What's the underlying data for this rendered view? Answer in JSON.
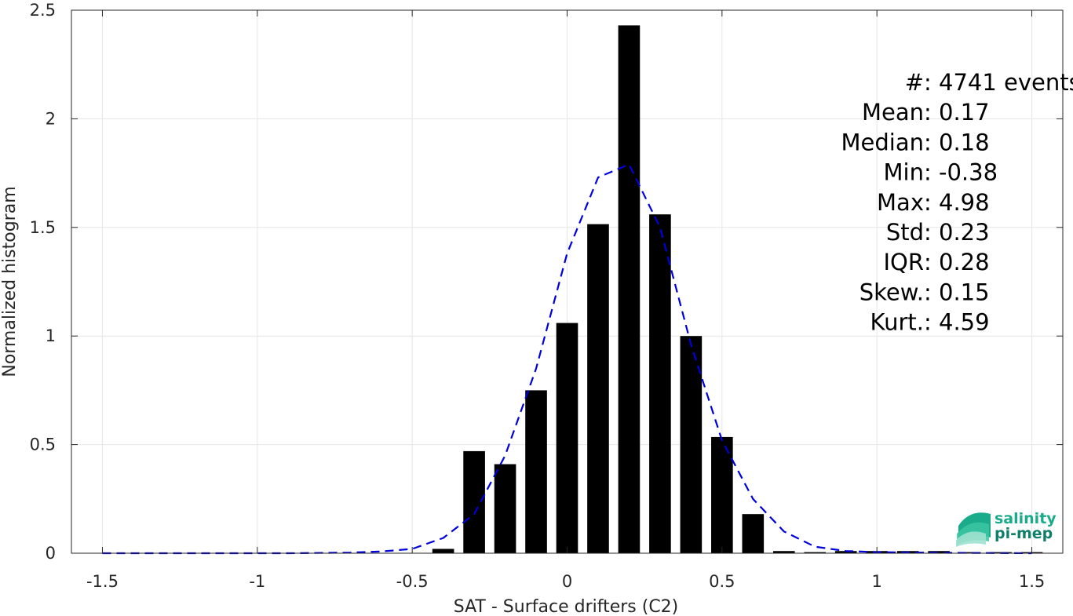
{
  "chart_data": {
    "type": "bar",
    "xlabel": "SAT - Surface drifters (C2)",
    "ylabel": "Normalized histogram",
    "xlim": [
      -1.6,
      1.6
    ],
    "ylim": [
      0,
      2.5
    ],
    "grid": true,
    "x_ticks": [
      "-1.5",
      "-1",
      "-0.5",
      "0",
      "0.5",
      "1",
      "1.5"
    ],
    "x_tick_values": [
      -1.5,
      -1,
      -0.5,
      0,
      0.5,
      1,
      1.5
    ],
    "y_ticks": [
      "0",
      "0.5",
      "1",
      "1.5",
      "2",
      "2.5"
    ],
    "y_tick_values": [
      0,
      0.5,
      1,
      1.5,
      2,
      2.5
    ],
    "bar_width": 0.07,
    "bars": {
      "x": [
        -0.4,
        -0.3,
        -0.2,
        -0.1,
        0.0,
        0.1,
        0.2,
        0.3,
        0.4,
        0.5,
        0.6,
        0.7,
        0.8,
        0.9,
        1.0,
        1.1,
        1.2,
        1.3,
        1.4,
        1.5
      ],
      "values": [
        0.02,
        0.47,
        0.41,
        0.75,
        1.06,
        1.515,
        2.43,
        1.56,
        1.0,
        0.535,
        0.18,
        0.01,
        0.005,
        0.01,
        0.01,
        0.01,
        0.01,
        0.005,
        0.005,
        0.005
      ],
      "color": "#000000"
    },
    "fit_curve": {
      "style": "dashed",
      "color": "#0000dd",
      "x": [
        -1.5,
        -1.2,
        -0.9,
        -0.7,
        -0.6,
        -0.5,
        -0.4,
        -0.3,
        -0.2,
        -0.1,
        0.0,
        0.1,
        0.2,
        0.3,
        0.4,
        0.5,
        0.6,
        0.7,
        0.8,
        0.9,
        1.0,
        1.2,
        1.5
      ],
      "y": [
        0.0,
        0.0,
        0.0,
        0.003,
        0.008,
        0.02,
        0.07,
        0.18,
        0.45,
        0.85,
        1.38,
        1.73,
        1.79,
        1.5,
        0.96,
        0.52,
        0.25,
        0.1,
        0.03,
        0.01,
        0.005,
        0.002,
        0.0
      ]
    },
    "stats": [
      {
        "label": "#  : 4741 events"
      },
      {
        "label": "Mean : 0.17"
      },
      {
        "label": "Median : 0.18"
      },
      {
        "label": "Min : -0.38"
      },
      {
        "label": "Max : 4.98"
      },
      {
        "label": "Std : 0.23"
      },
      {
        "label": "IQR : 0.28"
      },
      {
        "label": "Skew. : 0.15"
      },
      {
        "label": "Kurt. : 4.59"
      }
    ]
  },
  "logo": {
    "line1": "salinity",
    "line2": "pi-mep",
    "color_top": "#1aab8a",
    "color_bottom": "#0f7f6a"
  }
}
